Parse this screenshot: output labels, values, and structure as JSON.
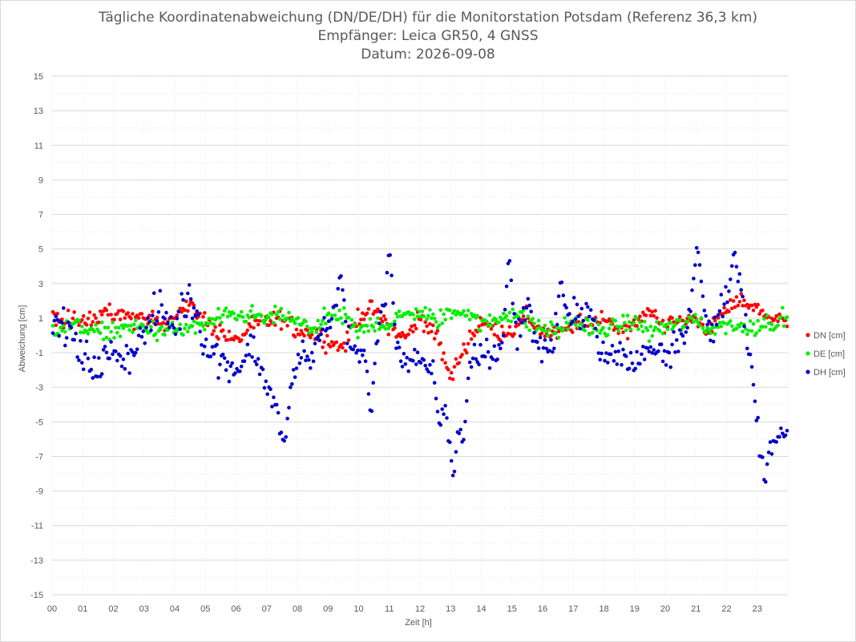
{
  "chart_data": {
    "type": "scatter",
    "title_lines": [
      "Tägliche Koordinatenabweichung (DN/DE/DH) für die Monitorstation Potsdam (Referenz 36,3 km)",
      "Empfänger: Leica GR50, 4 GNSS",
      "Datum: 2026-09-08"
    ],
    "xlabel": "Zeit [h]",
    "ylabel": "Abweichung [cm]",
    "xlim": [
      0,
      24
    ],
    "ylim": [
      -15,
      15
    ],
    "x_tick_labels": [
      "00",
      "01",
      "02",
      "03",
      "04",
      "05",
      "06",
      "07",
      "08",
      "09",
      "10",
      "11",
      "12",
      "13",
      "14",
      "15",
      "16",
      "17",
      "18",
      "19",
      "20",
      "21",
      "22",
      "23"
    ],
    "y_ticks": [
      15,
      13,
      11,
      9,
      7,
      5,
      3,
      1,
      -1,
      -3,
      -5,
      -7,
      -9,
      -11,
      -13,
      -15
    ],
    "grid": true,
    "legend_position": "right",
    "points_per_hour": 20,
    "series": [
      {
        "name": "DN [cm]",
        "color": "#ff0000",
        "anchors_x": [
          0,
          0.5,
          1,
          1.5,
          2,
          2.5,
          3,
          3.5,
          4,
          4.5,
          5,
          5.5,
          6,
          6.5,
          7,
          7.5,
          8,
          8.5,
          9,
          9.5,
          10,
          10.5,
          11,
          11.5,
          12,
          12.5,
          13,
          13.5,
          14,
          14.5,
          15,
          15.5,
          16,
          16.5,
          17,
          17.5,
          18,
          18.5,
          19,
          19.5,
          20,
          20.5,
          21,
          21.5,
          22,
          22.5,
          23,
          23.5,
          24
        ],
        "anchors_y": [
          0.8,
          0.9,
          0.7,
          1.1,
          1.2,
          1.0,
          1.1,
          0.6,
          1.3,
          1.7,
          0.8,
          0.2,
          -0.4,
          0.5,
          0.8,
          0.9,
          0.3,
          0.2,
          -0.3,
          -0.7,
          1.2,
          1.5,
          0.5,
          -0.2,
          1.0,
          0.2,
          -2.5,
          -0.5,
          0.8,
          0.2,
          0.3,
          1.0,
          0.2,
          0.0,
          0.6,
          0.6,
          1.1,
          0.4,
          0.5,
          1.5,
          0.6,
          0.8,
          1.0,
          0.3,
          1.5,
          2.0,
          1.6,
          0.9,
          0.8
        ],
        "noise": 0.6
      },
      {
        "name": "DE [cm]",
        "color": "#00ee00",
        "anchors_x": [
          0,
          0.5,
          1,
          1.5,
          2,
          2.5,
          3,
          3.5,
          4,
          4.5,
          5,
          5.5,
          6,
          6.5,
          7,
          7.5,
          8,
          8.5,
          9,
          9.5,
          10,
          10.5,
          11,
          11.5,
          12,
          12.5,
          13,
          13.5,
          14,
          14.5,
          15,
          15.5,
          16,
          16.5,
          17,
          17.5,
          18,
          18.5,
          19,
          19.5,
          20,
          20.5,
          21,
          21.5,
          22,
          22.5,
          23,
          23.5,
          24
        ],
        "anchors_y": [
          0.3,
          0.6,
          0.5,
          0.1,
          0.3,
          0.4,
          0.5,
          0.2,
          0.3,
          0.4,
          0.6,
          1.0,
          1.1,
          1.2,
          0.9,
          1.2,
          0.7,
          0.4,
          1.0,
          1.1,
          0.1,
          0.8,
          0.6,
          1.2,
          1.4,
          0.8,
          1.3,
          1.5,
          0.6,
          0.9,
          1.4,
          0.8,
          0.4,
          0.2,
          0.9,
          0.4,
          0.3,
          0.6,
          0.8,
          0.2,
          0.5,
          0.6,
          0.9,
          0.3,
          0.7,
          0.4,
          0.6,
          0.8,
          0.9
        ],
        "noise": 0.6
      },
      {
        "name": "DH [cm]",
        "color": "#0000cc",
        "anchors_x": [
          0,
          0.5,
          1,
          1.5,
          2,
          2.5,
          3,
          3.5,
          4,
          4.5,
          5,
          5.5,
          6,
          6.5,
          7,
          7.5,
          8,
          8.5,
          9,
          9.5,
          10,
          10.5,
          11,
          11.5,
          12,
          12.5,
          13,
          13.5,
          14,
          14.5,
          15,
          15.5,
          16,
          16.5,
          17,
          17.5,
          18,
          18.5,
          19,
          19.5,
          20,
          20.5,
          21,
          21.5,
          22,
          22.5,
          23,
          23.5,
          24
        ],
        "anchors_y": [
          0.8,
          0.5,
          -1.5,
          -1.8,
          -1.0,
          -1.2,
          0.2,
          1.5,
          0.5,
          2.5,
          -0.5,
          -1.5,
          -1.8,
          -0.5,
          -2.8,
          -5.0,
          -1.5,
          -1.2,
          1.0,
          0.5,
          -1.5,
          1.0,
          0.0,
          -1.5,
          -1.8,
          -2.0,
          -5.0,
          -1.5,
          -1.0,
          -1.2,
          -0.5,
          1.5,
          -1.0,
          -0.5,
          1.0,
          1.8,
          -1.5,
          -1.0,
          -1.8,
          -0.5,
          -1.0,
          0.0,
          2.0,
          0.0,
          2.5,
          2.0,
          -5.0,
          -6.0,
          -4.0
        ],
        "noise": 1.2,
        "peaks": [
          [
            6.1,
            -2.1
          ],
          [
            7.55,
            -6.35
          ],
          [
            9.4,
            3.85
          ],
          [
            10.4,
            -5.1
          ],
          [
            11.0,
            5.45
          ],
          [
            12.65,
            -5.4
          ],
          [
            13.1,
            -8.55
          ],
          [
            13.4,
            -6.7
          ],
          [
            14.9,
            5.05
          ],
          [
            16.6,
            3.6
          ],
          [
            21.05,
            5.4
          ],
          [
            22.25,
            5.15
          ],
          [
            23.25,
            -8.85
          ],
          [
            23.6,
            -6.3
          ],
          [
            23.9,
            -6.1
          ]
        ]
      }
    ]
  }
}
